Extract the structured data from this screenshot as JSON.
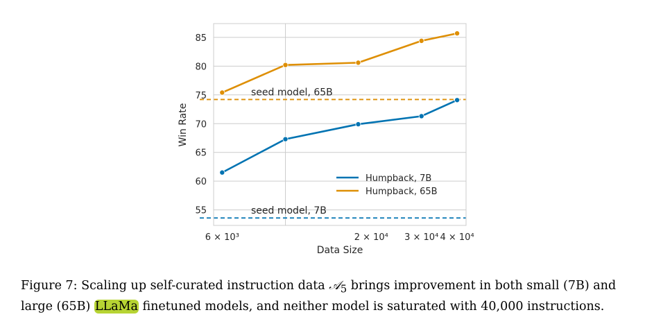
{
  "chart_data": {
    "type": "line",
    "title": "",
    "xlabel": "Data Size",
    "ylabel": "Win Rate",
    "x_scale": "log",
    "xlim": [
      5600,
      43000
    ],
    "ylim": [
      52.3,
      87.4
    ],
    "grid": true,
    "legend_position": "lower-right",
    "x_ticks": [
      {
        "value": 6000,
        "label": "6 × 10³"
      },
      {
        "value": 20000,
        "label": "2 × 10⁴"
      },
      {
        "value": 30000,
        "label": "3 × 10⁴"
      },
      {
        "value": 40000,
        "label": "4 × 10⁴"
      }
    ],
    "x_grid_major": [
      10000
    ],
    "y_ticks": [
      55,
      60,
      65,
      70,
      75,
      80,
      85
    ],
    "series": [
      {
        "name": "Humpback, 7B",
        "color": "#0173b2",
        "x": [
          6000,
          10000,
          18000,
          30000,
          40000
        ],
        "y": [
          61.5,
          67.3,
          69.9,
          71.3,
          74.1
        ]
      },
      {
        "name": "Humpback, 65B",
        "color": "#de8f05",
        "x": [
          6000,
          10000,
          18000,
          30000,
          40000
        ],
        "y": [
          75.4,
          80.2,
          80.6,
          84.4,
          85.7
        ]
      }
    ],
    "reference_lines": [
      {
        "label": "seed model, 65B",
        "y": 74.2,
        "color": "#de8f05"
      },
      {
        "label": "seed model, 7B",
        "y": 53.6,
        "color": "#0173b2"
      }
    ]
  },
  "caption": {
    "prefix": "Figure 7: Scaling up self-curated instruction data ",
    "symbol": "𝒜",
    "subscript": "5",
    "middle": " brings improvement in both small (7B) and large (65B) ",
    "highlight": "LLaMa",
    "suffix": " finetuned models, and neither model is saturated with 40,000 instructions."
  }
}
